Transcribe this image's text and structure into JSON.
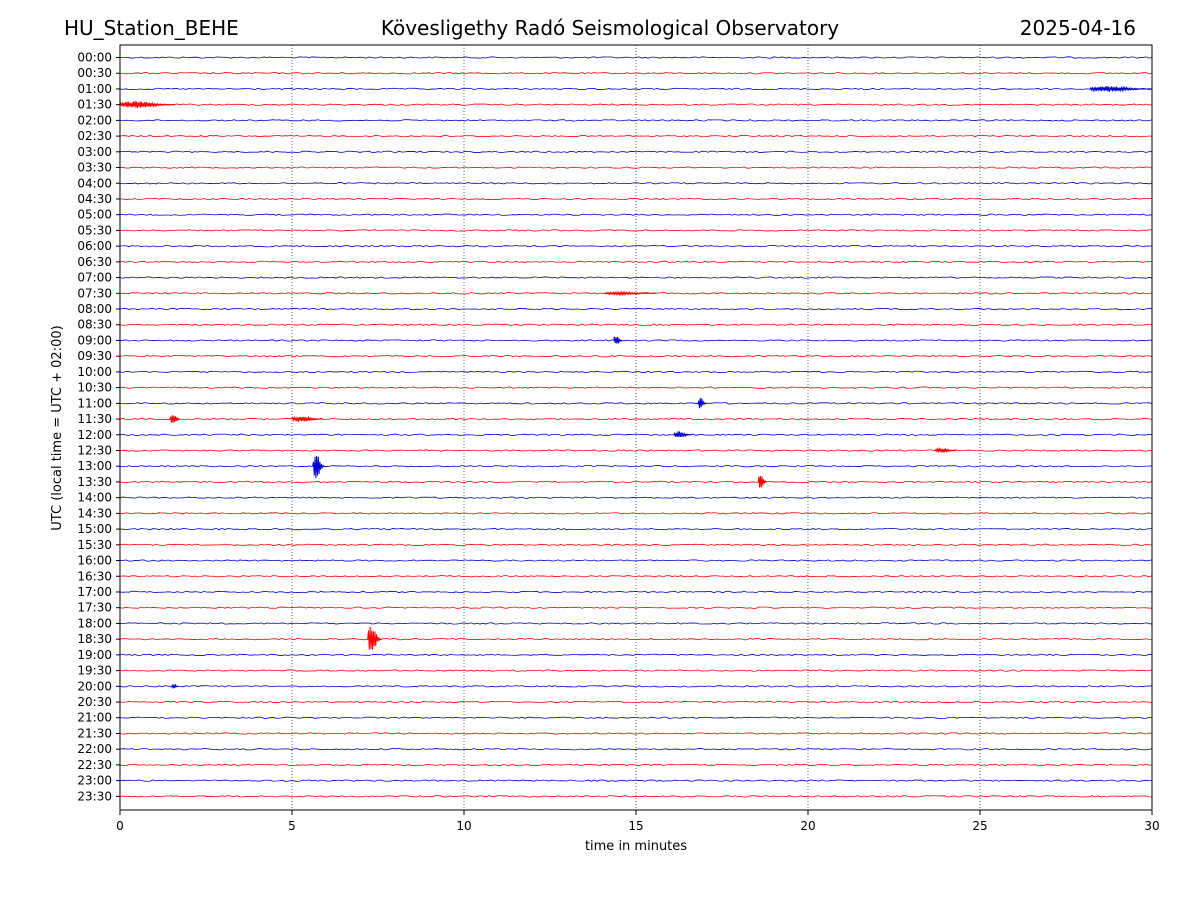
{
  "header": {
    "station": "HU_Station_BEHE",
    "observatory": "Kövesligethy Radó Seismological Observatory",
    "date": "2025-04-16"
  },
  "colors": {
    "trace_even": "#0000cc",
    "trace_odd": "#ff0000",
    "gridline": "#000000",
    "axis": "#000000",
    "background": "#ffffff"
  },
  "chart_data": {
    "type": "line",
    "title": "Kövesligethy Radó Seismological Observatory",
    "xlabel": "time in minutes",
    "ylabel": "UTC (local time = UTC + 02:00)",
    "xlim": [
      0,
      30
    ],
    "x_ticks": [
      "0",
      "5",
      "10",
      "15",
      "20",
      "25",
      "30"
    ],
    "grid": "vertical dotted lines at every 5 minutes",
    "row_labels": [
      "00:00",
      "00:30",
      "01:00",
      "01:30",
      "02:00",
      "02:30",
      "03:00",
      "03:30",
      "04:00",
      "04:30",
      "05:00",
      "05:30",
      "06:00",
      "06:30",
      "07:00",
      "07:30",
      "08:00",
      "08:30",
      "09:00",
      "09:30",
      "10:00",
      "10:30",
      "11:00",
      "11:30",
      "12:00",
      "12:30",
      "13:00",
      "13:30",
      "14:00",
      "14:30",
      "15:00",
      "15:30",
      "16:00",
      "16:30",
      "17:00",
      "17:30",
      "18:00",
      "18:30",
      "19:00",
      "19:30",
      "20:00",
      "20:30",
      "21:00",
      "21:30",
      "22:00",
      "22:30",
      "23:00",
      "23:30"
    ],
    "trace_color_pattern": [
      "blue",
      "red"
    ],
    "events": [
      {
        "row": "01:00",
        "start_min": 28.2,
        "end_min": 30.0,
        "amplitude": 0.25
      },
      {
        "row": "01:30",
        "start_min": 0.0,
        "end_min": 1.6,
        "amplitude": 0.3
      },
      {
        "row": "07:30",
        "start_min": 14.1,
        "end_min": 15.6,
        "amplitude": 0.12
      },
      {
        "row": "09:00",
        "start_min": 14.35,
        "end_min": 14.6,
        "amplitude": 0.45
      },
      {
        "row": "11:00",
        "start_min": 16.8,
        "end_min": 17.05,
        "amplitude": 0.5
      },
      {
        "row": "11:30",
        "start_min": 1.45,
        "end_min": 1.75,
        "amplitude": 0.55
      },
      {
        "row": "11:30",
        "start_min": 5.0,
        "end_min": 5.9,
        "amplitude": 0.25
      },
      {
        "row": "12:00",
        "start_min": 16.1,
        "end_min": 16.6,
        "amplitude": 0.3
      },
      {
        "row": "12:30",
        "start_min": 23.7,
        "end_min": 24.3,
        "amplitude": 0.2
      },
      {
        "row": "13:00",
        "start_min": 5.6,
        "end_min": 5.95,
        "amplitude": 1.05
      },
      {
        "row": "13:30",
        "start_min": 18.55,
        "end_min": 18.8,
        "amplitude": 0.75
      },
      {
        "row": "18:30",
        "start_min": 7.2,
        "end_min": 7.6,
        "amplitude": 1.25
      },
      {
        "row": "20:00",
        "start_min": 1.5,
        "end_min": 1.7,
        "amplitude": 0.2
      }
    ]
  }
}
